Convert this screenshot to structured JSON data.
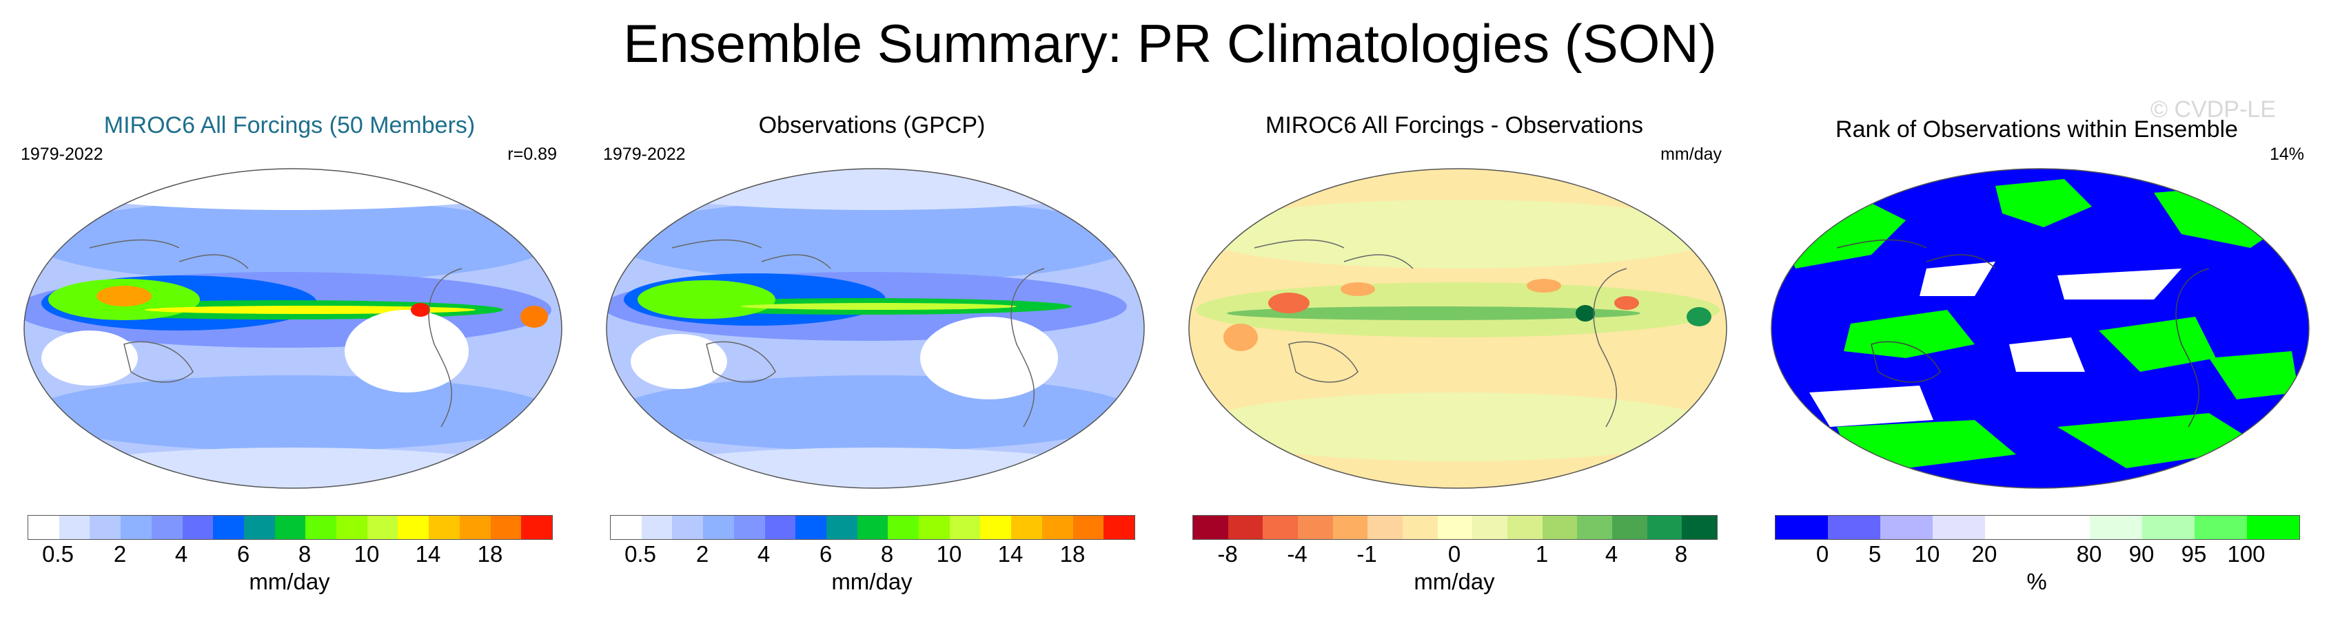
{
  "title": "Ensemble Summary: PR Climatologies (SON)",
  "watermark": "© CVDP-LE",
  "colors": {
    "pr_scale": [
      "#ffffff",
      "#d6e2ff",
      "#b5c9ff",
      "#8eb2ff",
      "#7f96ff",
      "#6370ff",
      "#0063ff",
      "#009696",
      "#00c633",
      "#63ff00",
      "#96ff00",
      "#c6ff33",
      "#ffff00",
      "#ffc600",
      "#ffa000",
      "#ff7c00",
      "#ff1900"
    ],
    "diff_scale": [
      "#a50026",
      "#d73027",
      "#f46d43",
      "#fdae61",
      "#fdd49e",
      "#fee8a5",
      "#ffffbf",
      "#eef6b0",
      "#d9ef8b",
      "#a6d96a",
      "#78c765",
      "#4ca650",
      "#1a9850",
      "#006837"
    ],
    "rank_scale": [
      "#0000ff",
      "#6464ff",
      "#b4b4ff",
      "#e2e2ff",
      "#ffffff",
      "#e2ffe2",
      "#b4ffb4",
      "#64ff64",
      "#00ff00"
    ]
  },
  "panels": [
    {
      "title": "MIROC6 All Forcings (50 Members)",
      "left_label": "1979-2022",
      "right_label": "r=0.89",
      "ticks": [
        "0.5",
        "2",
        "4",
        "6",
        "8",
        "10",
        "14",
        "18"
      ],
      "units": "mm/day"
    },
    {
      "title": "Observations (GPCP)",
      "left_label": "1979-2022",
      "right_label": "",
      "ticks": [
        "0.5",
        "2",
        "4",
        "6",
        "8",
        "10",
        "14",
        "18"
      ],
      "units": "mm/day"
    },
    {
      "title": "MIROC6 All Forcings - Observations",
      "left_label": "",
      "right_label": "mm/day",
      "ticks": [
        "-8",
        "-4",
        "-1",
        "0",
        "1",
        "4",
        "8"
      ],
      "units": "mm/day"
    },
    {
      "title": "Rank of Observations within Ensemble",
      "left_label": "",
      "right_label": "14%",
      "ticks": [
        "0",
        "5",
        "10",
        "20",
        "80",
        "90",
        "95",
        "100"
      ],
      "units": "%"
    }
  ],
  "chart_data": [
    {
      "type": "heatmap",
      "title": "MIROC6 All Forcings (50 Members)",
      "period": "1979-2022",
      "pattern_correlation": 0.89,
      "field": "PR climatology SON",
      "colorbar_levels": [
        0.5,
        1,
        2,
        3,
        4,
        5,
        6,
        7,
        8,
        9,
        10,
        12,
        14,
        16,
        17,
        18
      ],
      "colorbar_ticks": [
        0.5,
        2,
        4,
        6,
        8,
        10,
        14,
        18
      ],
      "units": "mm/day"
    },
    {
      "type": "heatmap",
      "title": "Observations (GPCP)",
      "period": "1979-2022",
      "field": "PR climatology SON",
      "colorbar_levels": [
        0.5,
        1,
        2,
        3,
        4,
        5,
        6,
        7,
        8,
        9,
        10,
        12,
        14,
        16,
        17,
        18
      ],
      "colorbar_ticks": [
        0.5,
        2,
        4,
        6,
        8,
        10,
        14,
        18
      ],
      "units": "mm/day"
    },
    {
      "type": "heatmap",
      "title": "MIROC6 All Forcings - Observations",
      "field": "PR climatology difference",
      "colorbar_levels": [
        -8,
        -6,
        -4,
        -2,
        -1,
        -0.5,
        0,
        0.5,
        1,
        2,
        4,
        6,
        8
      ],
      "colorbar_ticks": [
        -8,
        -4,
        -1,
        0,
        1,
        4,
        8
      ],
      "units": "mm/day"
    },
    {
      "type": "heatmap",
      "title": "Rank of Observations within Ensemble",
      "summary_value": "14%",
      "colorbar_levels": [
        0,
        5,
        10,
        20,
        80,
        90,
        95,
        100
      ],
      "colorbar_ticks": [
        0,
        5,
        10,
        20,
        80,
        90,
        95,
        100
      ],
      "units": "%"
    }
  ]
}
